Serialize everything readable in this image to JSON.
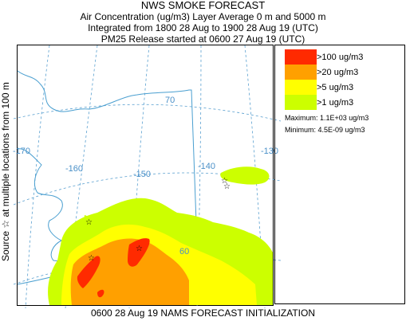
{
  "header": {
    "title": "NWS SMOKE FORECAST",
    "line2": "Air Concentration (ug/m3) Layer Average    0 m and  5000 m",
    "line3": "Integrated from 1800 28 Aug to 1900 28 Aug 19 (UTC)",
    "line4": "PM25 Release started at 0600 27 Aug 19 (UTC)"
  },
  "side_label": "Source ☆  at multiple locations   from   100 m",
  "map": {
    "lon_labels": [
      "-170",
      "-160",
      "-150",
      "-140",
      "-130"
    ],
    "lat_labels": [
      "70",
      "60"
    ]
  },
  "legend": {
    "items": [
      {
        "label": ">100 ug/m3",
        "color": "#ff2a00"
      },
      {
        "label": ">20 ug/m3",
        "color": "#ffa000"
      },
      {
        "label": ">5 ug/m3",
        "color": "#ffff00"
      },
      {
        "label": ">1 ug/m3",
        "color": "#ccff00"
      }
    ],
    "maximum": "Maximum: 1.1E+03 ug/m3",
    "minimum": "Minimum: 4.5E-09 ug/m3"
  },
  "footer": "0600 28 Aug 19 NAMS FORECAST INITIALIZATION"
}
